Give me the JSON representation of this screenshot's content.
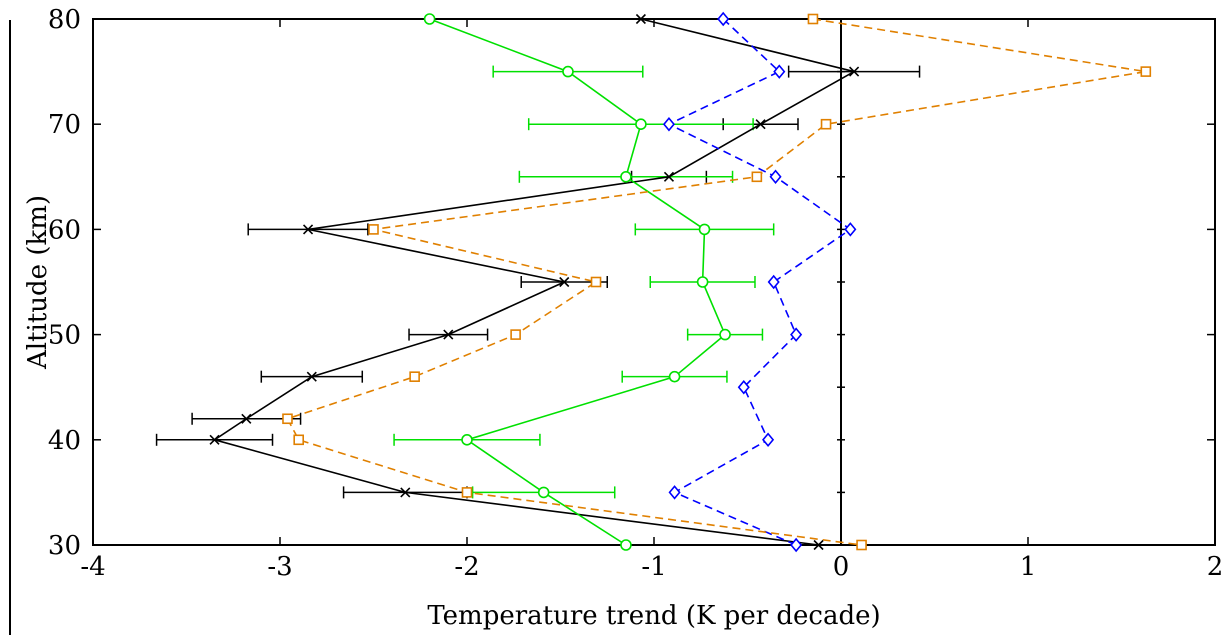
{
  "chart_data": {
    "type": "line",
    "orientation": "vertical-profile",
    "xlabel": "Temperature trend (K per decade)",
    "ylabel": "Altitude (km)",
    "xlim": [
      -4,
      2
    ],
    "ylim": [
      30,
      80
    ],
    "xticks": [
      -4,
      -3,
      -2,
      -1,
      0,
      1,
      2
    ],
    "yticks": [
      30,
      40,
      50,
      60,
      70,
      80
    ],
    "xtick_labels": [
      "-4",
      "-3",
      "-2",
      "-1",
      "0",
      "1",
      "2"
    ],
    "ytick_labels": [
      "30",
      "40",
      "50",
      "60",
      "70",
      "80"
    ],
    "zero_line": true,
    "grid": false,
    "legend": "none",
    "series": [
      {
        "color": "#000000",
        "dash": "solid",
        "marker": "x",
        "points": [
          {
            "alt": 80,
            "trend": -1.07
          },
          {
            "alt": 75,
            "trend": 0.07,
            "err": 0.35
          },
          {
            "alt": 70,
            "trend": -0.43,
            "err": 0.2
          },
          {
            "alt": 65,
            "trend": -0.92,
            "err": 0.2
          },
          {
            "alt": 60,
            "trend": -2.85,
            "err": 0.32
          },
          {
            "alt": 55,
            "trend": -1.48,
            "err": 0.23
          },
          {
            "alt": 50,
            "trend": -2.1,
            "err": 0.21
          },
          {
            "alt": 46,
            "trend": -2.83,
            "err": 0.27
          },
          {
            "alt": 42,
            "trend": -3.18,
            "err": 0.29
          },
          {
            "alt": 40,
            "trend": -3.35,
            "err": 0.31
          },
          {
            "alt": 35,
            "trend": -2.33,
            "err": 0.33
          },
          {
            "alt": 30,
            "trend": -0.12
          }
        ]
      },
      {
        "color": "#00e000",
        "dash": "solid",
        "marker": "o",
        "points": [
          {
            "alt": 80,
            "trend": -2.2
          },
          {
            "alt": 75,
            "trend": -1.46,
            "err": 0.4
          },
          {
            "alt": 70,
            "trend": -1.07,
            "err": 0.6
          },
          {
            "alt": 65,
            "trend": -1.15,
            "err": 0.57
          },
          {
            "alt": 60,
            "trend": -0.73,
            "err": 0.37
          },
          {
            "alt": 55,
            "trend": -0.74,
            "err": 0.28
          },
          {
            "alt": 50,
            "trend": -0.62,
            "err": 0.2
          },
          {
            "alt": 46,
            "trend": -0.89,
            "err": 0.28
          },
          {
            "alt": 40,
            "trend": -2.0,
            "err": 0.39
          },
          {
            "alt": 35,
            "trend": -1.59,
            "err": 0.38
          },
          {
            "alt": 30,
            "trend": -1.15
          }
        ]
      },
      {
        "color": "#0000ff",
        "dash": "dashed",
        "marker": "diamond",
        "points": [
          {
            "alt": 80,
            "trend": -0.63
          },
          {
            "alt": 75,
            "trend": -0.33
          },
          {
            "alt": 70,
            "trend": -0.92
          },
          {
            "alt": 65,
            "trend": -0.35
          },
          {
            "alt": 60,
            "trend": 0.05
          },
          {
            "alt": 55,
            "trend": -0.36
          },
          {
            "alt": 50,
            "trend": -0.24
          },
          {
            "alt": 45,
            "trend": -0.52
          },
          {
            "alt": 40,
            "trend": -0.39
          },
          {
            "alt": 35,
            "trend": -0.89
          },
          {
            "alt": 30,
            "trend": -0.24
          }
        ]
      },
      {
        "color": "#e08000",
        "dash": "dashed",
        "marker": "square",
        "points": [
          {
            "alt": 80,
            "trend": -0.15
          },
          {
            "alt": 75,
            "trend": 1.63
          },
          {
            "alt": 70,
            "trend": -0.08
          },
          {
            "alt": 65,
            "trend": -0.45
          },
          {
            "alt": 60,
            "trend": -2.5
          },
          {
            "alt": 55,
            "trend": -1.31
          },
          {
            "alt": 50,
            "trend": -1.74
          },
          {
            "alt": 46,
            "trend": -2.28
          },
          {
            "alt": 42,
            "trend": -2.96
          },
          {
            "alt": 40,
            "trend": -2.9
          },
          {
            "alt": 35,
            "trend": -2.0
          },
          {
            "alt": 30,
            "trend": 0.11
          }
        ]
      }
    ]
  }
}
